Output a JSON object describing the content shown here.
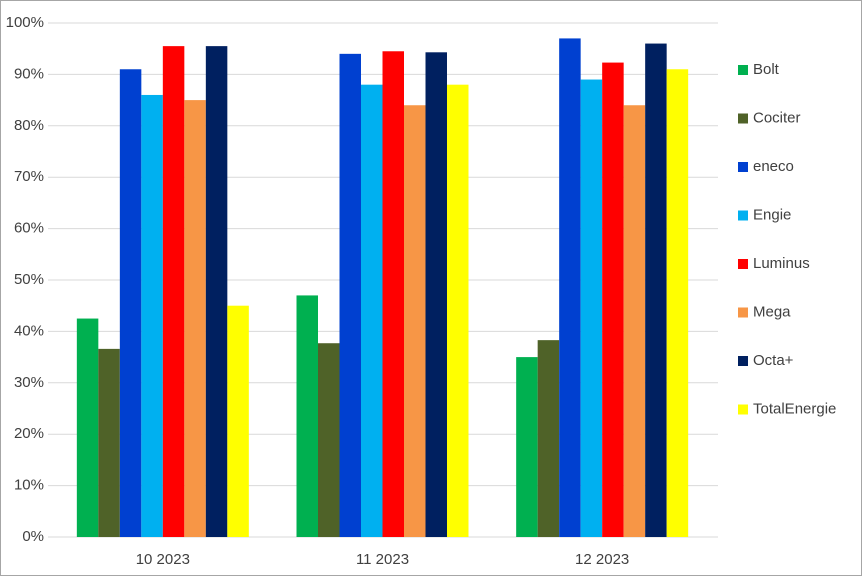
{
  "chart_data": {
    "type": "bar",
    "categories": [
      "10 2023",
      "11 2023",
      "12 2023"
    ],
    "series": [
      {
        "name": "Bolt",
        "color": "#00b050",
        "values": [
          42.5,
          47,
          35
        ]
      },
      {
        "name": "Cociter",
        "color": "#4f6228",
        "values": [
          36.6,
          37.7,
          38.3
        ]
      },
      {
        "name": "eneco",
        "color": "#0040d0",
        "values": [
          91,
          94,
          97
        ]
      },
      {
        "name": "Engie",
        "color": "#00b0f0",
        "values": [
          86,
          88,
          89
        ]
      },
      {
        "name": "Luminus",
        "color": "#ff0000",
        "values": [
          95.5,
          94.5,
          92.3
        ]
      },
      {
        "name": "Mega",
        "color": "#f79646",
        "values": [
          85,
          84,
          84
        ]
      },
      {
        "name": "Octa+",
        "color": "#002060",
        "values": [
          95.5,
          94.3,
          96
        ]
      },
      {
        "name": "TotalEnergie",
        "color": "#ffff00",
        "values": [
          45,
          88,
          91
        ]
      }
    ],
    "ylim": [
      0,
      100
    ],
    "yticks": [
      {
        "value": 0,
        "label": "0%"
      },
      {
        "value": 10,
        "label": "10%"
      },
      {
        "value": 20,
        "label": "20%"
      },
      {
        "value": 30,
        "label": "30%"
      },
      {
        "value": 40,
        "label": "40%"
      },
      {
        "value": 50,
        "label": "50%"
      },
      {
        "value": 60,
        "label": "60%"
      },
      {
        "value": 70,
        "label": "70%"
      },
      {
        "value": 80,
        "label": "80%"
      },
      {
        "value": 90,
        "label": "90%"
      },
      {
        "value": 100,
        "label": "100%"
      }
    ],
    "grid": true,
    "legend": "right"
  }
}
